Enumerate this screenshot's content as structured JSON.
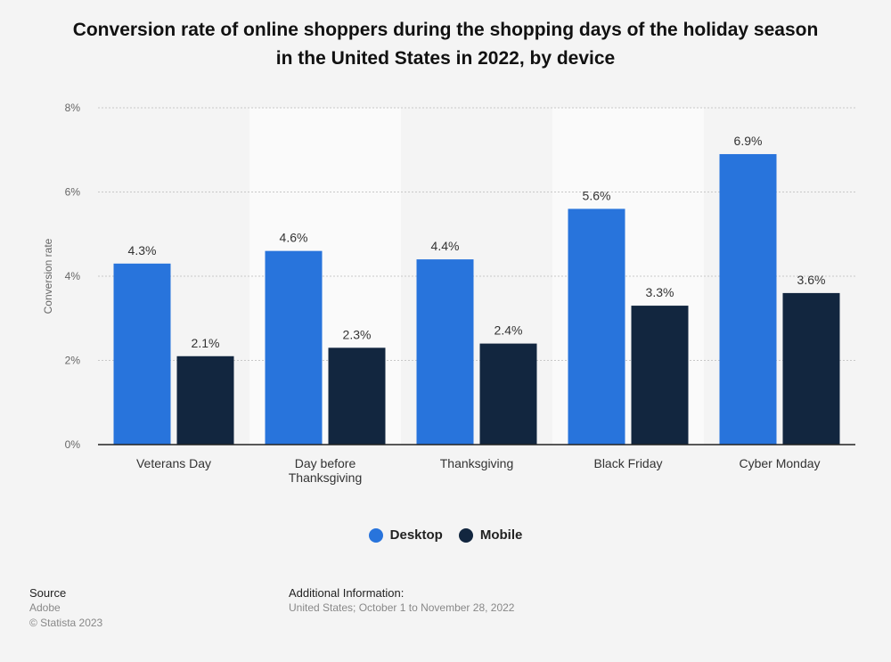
{
  "title_line1": "Conversion rate of online shoppers during the shopping days of the holiday season",
  "title_line2": "in the United States in 2022, by device",
  "chart_data": {
    "type": "bar",
    "categories": [
      "Veterans Day",
      "Day before Thanksgiving",
      "Thanksgiving",
      "Black Friday",
      "Cyber Monday"
    ],
    "category_lines": [
      [
        "Veterans Day"
      ],
      [
        "Day before",
        "Thanksgiving"
      ],
      [
        "Thanksgiving"
      ],
      [
        "Black Friday"
      ],
      [
        "Cyber Monday"
      ]
    ],
    "series": [
      {
        "name": "Desktop",
        "color": "#2874dc",
        "values": [
          4.3,
          4.6,
          4.4,
          5.6,
          6.9
        ],
        "labels": [
          "4.3%",
          "4.6%",
          "4.4%",
          "5.6%",
          "6.9%"
        ]
      },
      {
        "name": "Mobile",
        "color": "#12263f",
        "values": [
          2.1,
          2.3,
          2.4,
          3.3,
          3.6
        ],
        "labels": [
          "2.1%",
          "2.3%",
          "2.4%",
          "3.3%",
          "3.6%"
        ]
      }
    ],
    "ylabel": "Conversion rate",
    "ylim": [
      0,
      8
    ],
    "yticks": [
      0,
      2,
      4,
      6,
      8
    ],
    "ytick_labels": [
      "0%",
      "2%",
      "4%",
      "6%",
      "8%"
    ],
    "grid": true,
    "legend_position": "bottom-center"
  },
  "legend": {
    "desktop": "Desktop",
    "mobile": "Mobile"
  },
  "footer": {
    "source_label": "Source",
    "source_value": "Adobe",
    "copyright": "© Statista 2023",
    "additional_label": "Additional Information:",
    "additional_value": "United States; October 1 to November 28, 2022"
  }
}
